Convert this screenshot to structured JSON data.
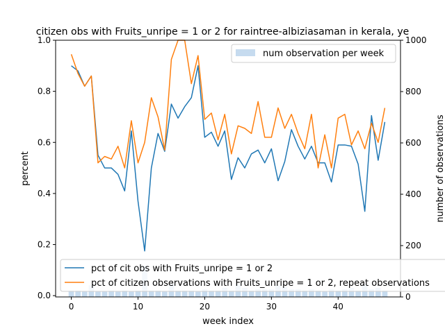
{
  "chart_data": {
    "type": "line",
    "title": "citizen obs with Fruits_unripe = 1 or 2 for raintree-albiziasaman in kerala, ye",
    "xlabel": "week index",
    "ylabel": "percent",
    "y2label": "number of observations",
    "xlim": [
      -2.35,
      49.35
    ],
    "ylim": [
      -0.005,
      1.0
    ],
    "y2lim": [
      0,
      1000
    ],
    "x_ticks": [
      0,
      10,
      20,
      30,
      40
    ],
    "y_ticks": [
      0.0,
      0.2,
      0.4,
      0.6,
      0.8,
      1.0
    ],
    "y2_ticks": [
      0,
      200,
      400,
      600,
      800,
      1000
    ],
    "grid": false,
    "x": [
      0,
      1,
      2,
      3,
      4,
      5,
      6,
      7,
      8,
      9,
      10,
      11,
      12,
      13,
      14,
      15,
      16,
      17,
      18,
      19,
      20,
      21,
      22,
      23,
      24,
      25,
      26,
      27,
      28,
      29,
      30,
      31,
      32,
      33,
      34,
      35,
      36,
      37,
      38,
      39,
      40,
      41,
      42,
      43,
      44,
      45,
      46,
      47
    ],
    "series": [
      {
        "name": "pct of cit obs with Fruits_unripe = 1 or 2",
        "axis": "left",
        "color": "#1f77b4",
        "values": [
          0.9,
          0.88,
          0.82,
          0.86,
          0.55,
          0.5,
          0.5,
          0.475,
          0.41,
          0.645,
          0.37,
          0.175,
          0.5,
          0.635,
          0.565,
          0.75,
          0.695,
          0.74,
          0.775,
          0.9,
          0.62,
          0.64,
          0.585,
          0.645,
          0.455,
          0.54,
          0.5,
          0.555,
          0.57,
          0.52,
          0.575,
          0.45,
          0.525,
          0.65,
          0.585,
          0.535,
          0.585,
          0.52,
          0.52,
          0.445,
          0.59,
          0.59,
          0.585,
          0.515,
          0.33,
          0.705,
          0.53,
          0.68
        ]
      },
      {
        "name": "pct of citizen observations with Fruits_unripe = 1 or 2, repeat observations",
        "axis": "left",
        "color": "#ff7f0e",
        "values": [
          0.945,
          0.87,
          0.82,
          0.86,
          0.52,
          0.545,
          0.535,
          0.585,
          0.5,
          0.685,
          0.52,
          0.6,
          0.775,
          0.7,
          0.57,
          0.925,
          1.0,
          1.0,
          0.83,
          0.94,
          0.69,
          0.715,
          0.61,
          0.71,
          0.555,
          0.665,
          0.655,
          0.635,
          0.76,
          0.62,
          0.62,
          0.735,
          0.655,
          0.71,
          0.635,
          0.575,
          0.71,
          0.5,
          0.63,
          0.5,
          0.695,
          0.71,
          0.59,
          0.645,
          0.575,
          0.675,
          0.6,
          0.735
        ]
      }
    ],
    "bars": {
      "name": "num observation per week",
      "axis": "right",
      "color": "#c6dbef",
      "values": [
        25,
        25,
        20,
        45,
        20,
        20,
        25,
        20,
        25,
        20,
        25,
        120,
        25,
        25,
        20,
        50,
        25,
        25,
        25,
        20,
        30,
        25,
        25,
        35,
        25,
        50,
        35,
        25,
        30,
        30,
        30,
        45,
        40,
        30,
        30,
        25,
        30,
        25,
        20,
        30,
        25,
        30,
        35,
        25,
        50,
        30,
        35,
        25
      ]
    },
    "legends": {
      "upper_right": [
        "num observation per week"
      ],
      "lower_left": [
        "pct of cit obs with Fruits_unripe = 1 or 2",
        "pct of citizen observations with Fruits_unripe = 1 or 2, repeat observations"
      ]
    }
  }
}
